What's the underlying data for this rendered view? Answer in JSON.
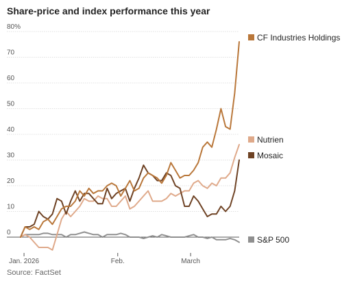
{
  "title": "Share-price and index performance this year",
  "source": "Source: FactSet",
  "chart_data": {
    "type": "line",
    "title": "Share-price and index performance this year",
    "ylim": [
      -5,
      80
    ],
    "yticks": [
      0,
      10,
      20,
      30,
      40,
      50,
      60,
      70,
      80
    ],
    "ytick_labels": [
      "0",
      "10",
      "20",
      "30",
      "40",
      "50",
      "60",
      "70",
      "80%"
    ],
    "xlim": [
      0,
      63
    ],
    "xticks": [
      {
        "x": 1,
        "label": "Jan. 2026"
      },
      {
        "x": 28,
        "label": "Feb."
      },
      {
        "x": 49,
        "label": "March"
      }
    ],
    "grid": true,
    "legend": "right, labels at series ends",
    "series": [
      {
        "name": "CF Industries Holdings",
        "color": "#b9773a",
        "values": [
          0,
          4,
          3,
          4,
          3,
          6,
          7,
          5,
          8,
          11,
          12,
          12,
          14,
          18,
          16,
          19,
          17,
          18,
          18,
          20,
          21,
          20,
          16,
          19,
          22,
          18,
          19,
          23,
          25,
          24,
          23,
          21,
          24,
          29,
          26,
          23,
          24,
          24,
          26,
          29,
          35,
          37,
          35,
          42,
          50,
          43,
          42,
          56,
          76
        ]
      },
      {
        "name": "Nutrien",
        "color": "#dfa98a",
        "values": [
          0,
          1,
          0,
          -2,
          -4,
          -4,
          -4,
          -5,
          1,
          7,
          10,
          8,
          10,
          12,
          15,
          14,
          14,
          16,
          15,
          15,
          12,
          12,
          14,
          16,
          11,
          12,
          14,
          16,
          18,
          14,
          14,
          14,
          15,
          17,
          16,
          17,
          18,
          18,
          21,
          22,
          20,
          19,
          21,
          20,
          23,
          23,
          25,
          31,
          36
        ]
      },
      {
        "name": "Mosaic",
        "color": "#6e4224",
        "values": [
          0,
          4,
          4,
          5,
          10,
          8,
          7,
          9,
          15,
          14,
          9,
          14,
          18,
          14,
          17,
          17,
          15,
          13,
          13,
          19,
          15,
          17,
          18,
          19,
          14,
          19,
          23,
          28,
          25,
          24,
          22,
          22,
          25,
          24,
          20,
          19,
          12,
          12,
          16,
          14,
          11,
          8,
          9,
          9,
          12,
          10,
          12,
          18,
          30
        ]
      },
      {
        "name": "S&P 500",
        "color": "#8f8f8f",
        "values": [
          0,
          1,
          1,
          1,
          1,
          1.5,
          1.5,
          1,
          1,
          1,
          0,
          1,
          1,
          1.5,
          2,
          1.5,
          1,
          1,
          0,
          1,
          1,
          1,
          1.5,
          1,
          0,
          0,
          0,
          -0.5,
          0,
          0.5,
          0,
          1,
          0.5,
          0,
          0,
          0,
          0,
          0.5,
          1,
          0,
          0,
          -0.5,
          0,
          -1,
          -1,
          -1,
          -0.5,
          -1,
          -2
        ]
      }
    ]
  }
}
